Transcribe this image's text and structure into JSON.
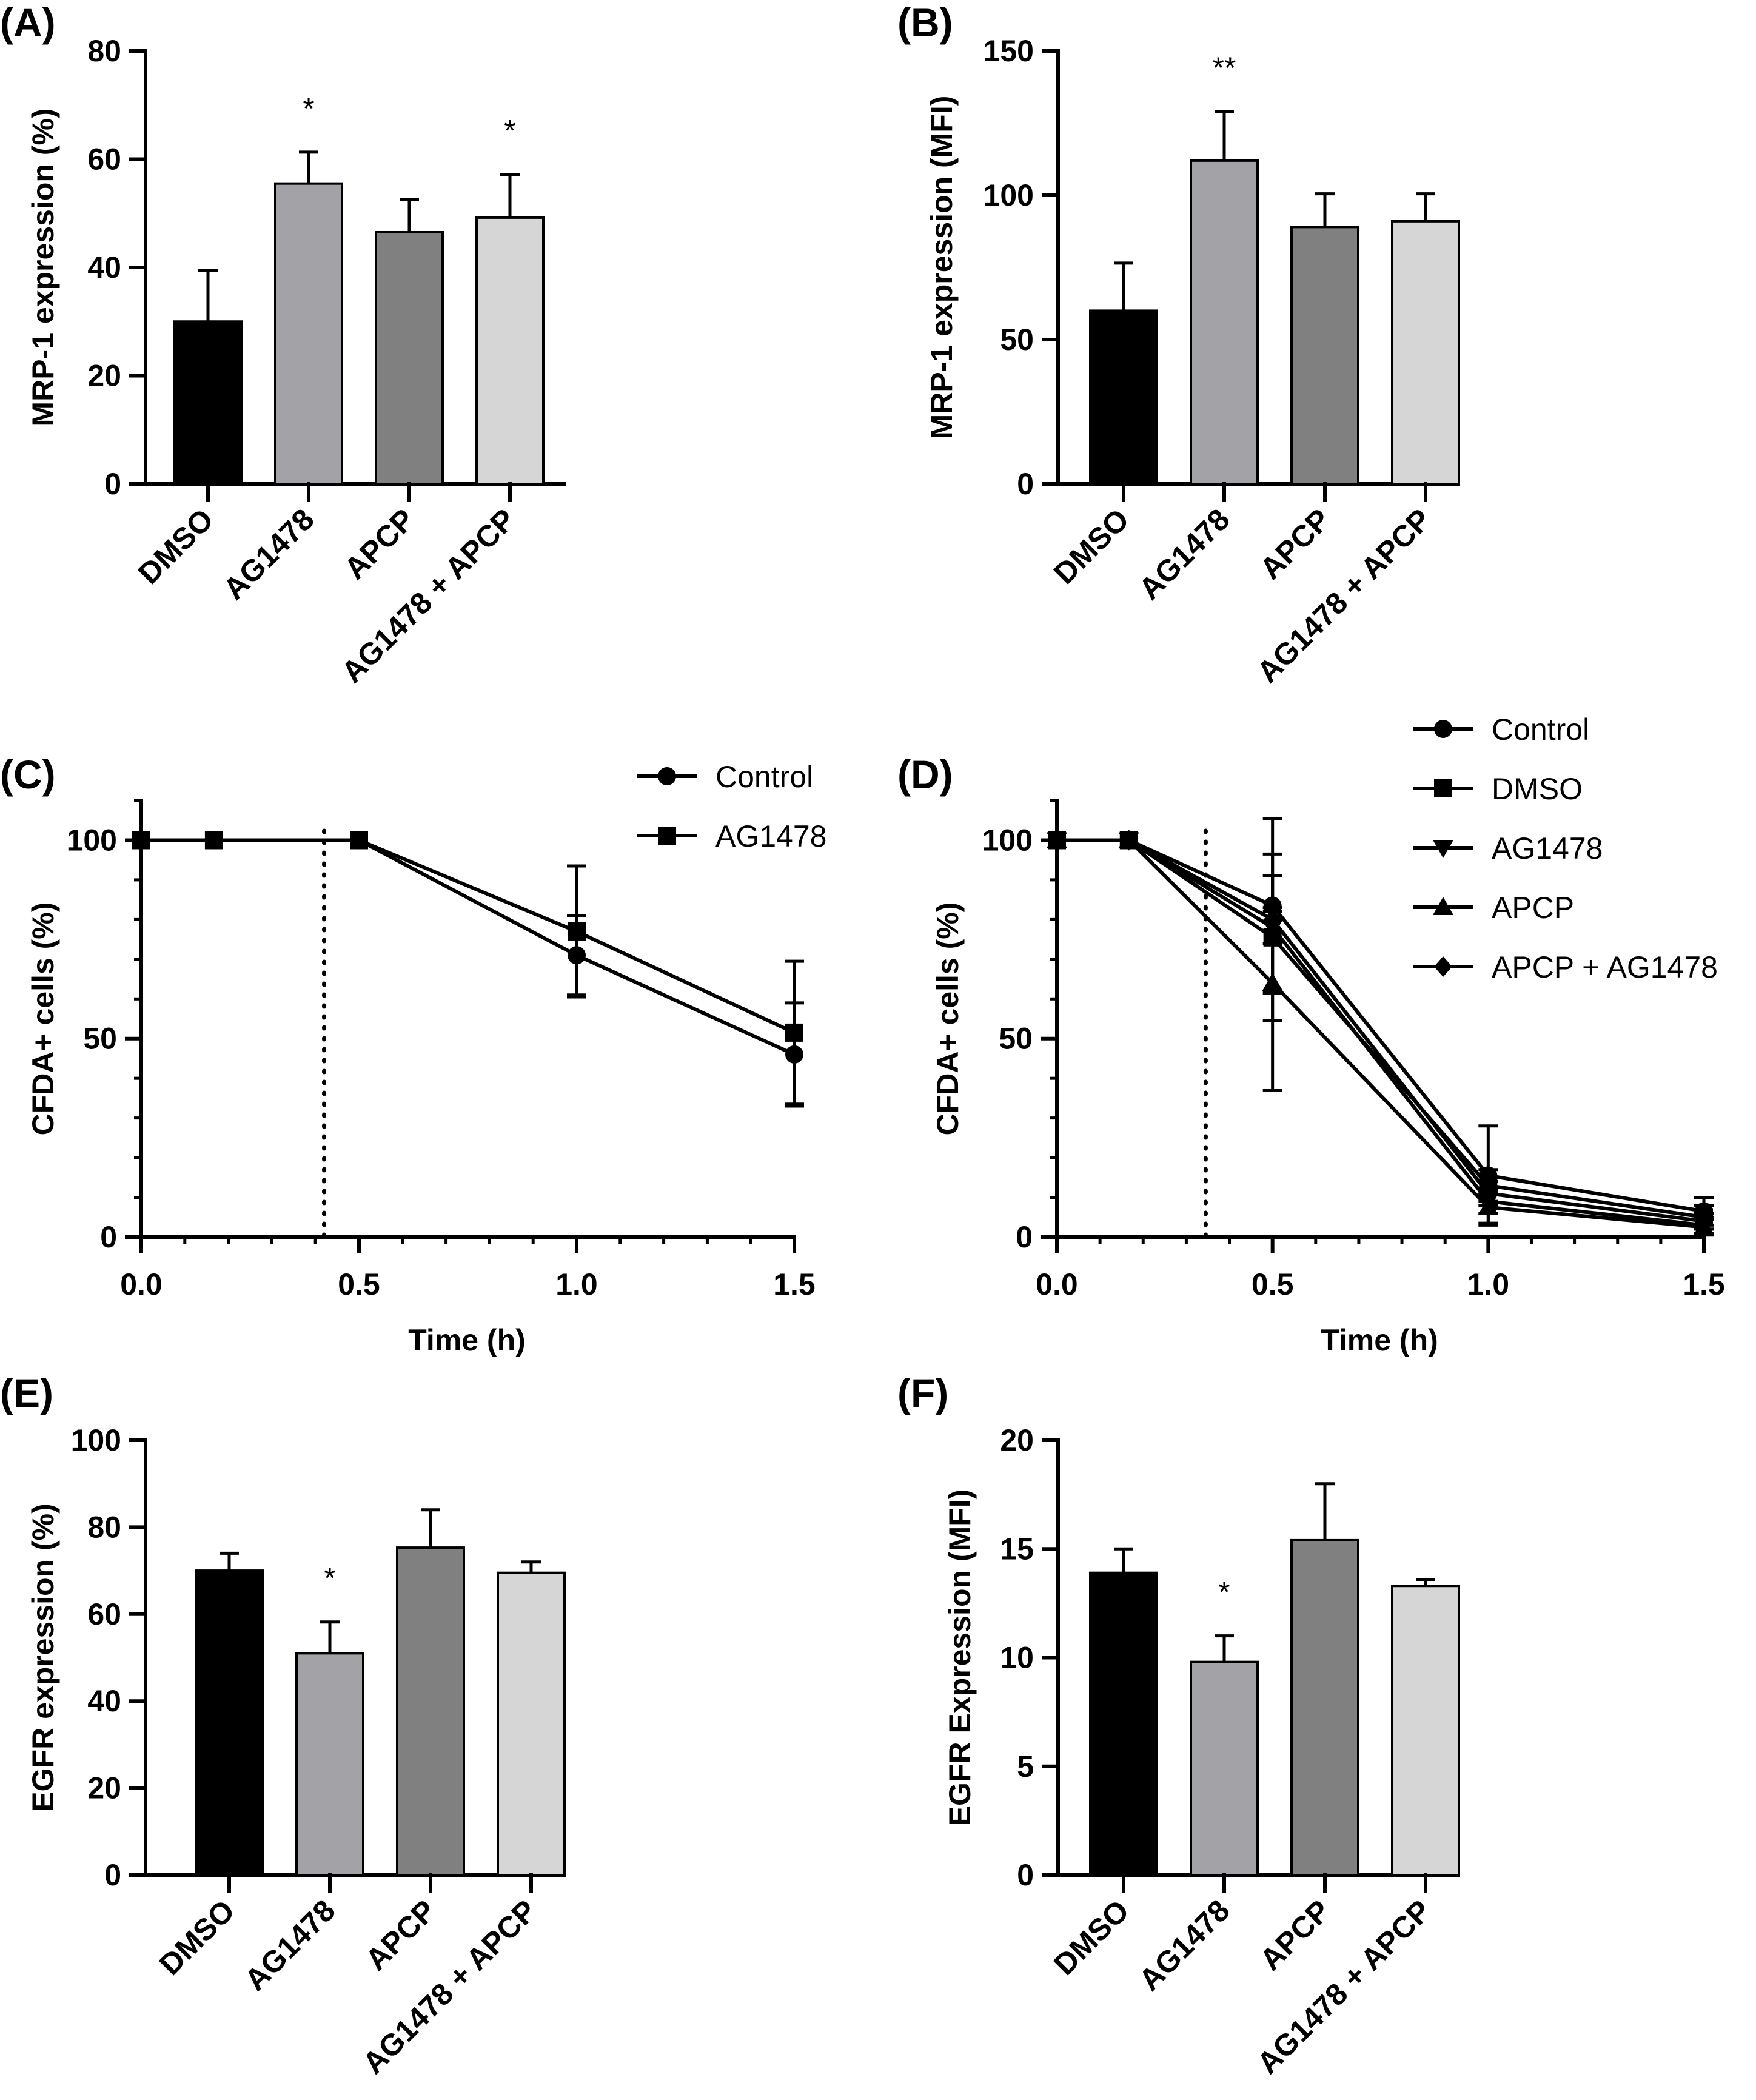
{
  "chart_data": [
    {
      "id": "A",
      "panel_label": "(A)",
      "type": "bar",
      "categories": [
        "DMSO",
        "AG1478",
        "APCP",
        "AG1478 + APCP"
      ],
      "values": [
        30,
        55.5,
        46.5,
        49.2
      ],
      "errors": [
        9.5,
        5.8,
        6.0,
        8.0
      ],
      "colors": [
        "#000000",
        "#a2a2a7",
        "#808080",
        "#d6d6d6"
      ],
      "significance": [
        "",
        "*",
        "",
        "*"
      ],
      "ylabel": "MRP-1 expression (%)",
      "xlabel": "",
      "ylim": [
        0,
        80
      ],
      "yticks": [
        0,
        20,
        40,
        60,
        80
      ],
      "ytick_labels": [
        "0",
        "20",
        "40",
        "60",
        "80"
      ]
    },
    {
      "id": "B",
      "panel_label": "(B)",
      "type": "bar",
      "categories": [
        "DMSO",
        "AG1478",
        "APCP",
        "AG1478 + APCP"
      ],
      "values": [
        60,
        112,
        89,
        91
      ],
      "errors": [
        16.5,
        17,
        11.5,
        9.5
      ],
      "colors": [
        "#000000",
        "#a2a2a7",
        "#808080",
        "#d6d6d6"
      ],
      "significance": [
        "",
        "**",
        "",
        ""
      ],
      "ylabel": "MRP-1 expression (MFI)",
      "xlabel": "",
      "ylim": [
        0,
        150
      ],
      "yticks": [
        0,
        50,
        100,
        150
      ],
      "ytick_labels": [
        "0",
        "50",
        "100",
        "150"
      ]
    },
    {
      "id": "C",
      "panel_label": "(C)",
      "type": "line",
      "xlabel": "Time (h)",
      "ylabel": "CFDA+ cells (%)",
      "xlim": [
        0,
        1.5
      ],
      "ylim": [
        0,
        110
      ],
      "xticks": [
        0,
        0.5,
        1.0,
        1.5
      ],
      "xtick_labels": [
        "0.0",
        "0.5",
        "1.0",
        "1.5"
      ],
      "yticks": [
        0,
        50,
        100
      ],
      "ytick_labels": [
        "0",
        "50",
        "100"
      ],
      "vline_x": 0.42,
      "legend_position": "top-right",
      "series": [
        {
          "name": "Control",
          "marker": "circle",
          "x": [
            0,
            0.167,
            0.5,
            1.0,
            1.5
          ],
          "y": [
            100,
            100,
            100,
            71,
            46
          ],
          "errors": [
            0,
            0,
            0,
            10,
            13
          ]
        },
        {
          "name": "AG1478",
          "marker": "square",
          "x": [
            0,
            0.167,
            0.5,
            1.0,
            1.5
          ],
          "y": [
            100,
            100,
            100,
            77,
            51.5
          ],
          "errors": [
            0,
            0,
            0,
            16.5,
            18
          ]
        }
      ]
    },
    {
      "id": "D",
      "panel_label": "(D)",
      "type": "line",
      "xlabel": "Time (h)",
      "ylabel": "CFDA+ cells (%)",
      "xlim": [
        0,
        1.5
      ],
      "ylim": [
        0,
        110
      ],
      "xticks": [
        0,
        0.5,
        1.0,
        1.5
      ],
      "xtick_labels": [
        "0.0",
        "0.5",
        "1.0",
        "1.5"
      ],
      "yticks": [
        0,
        50,
        100
      ],
      "ytick_labels": [
        "0",
        "50",
        "100"
      ],
      "vline_x": 0.345,
      "legend_position": "top-right",
      "series": [
        {
          "name": "Control",
          "marker": "circle",
          "x": [
            0,
            0.167,
            0.5,
            1.0,
            1.5
          ],
          "y": [
            100,
            100,
            83.5,
            15.5,
            6.5
          ],
          "errors": [
            0,
            0,
            22,
            12.5,
            3.5
          ]
        },
        {
          "name": "DMSO",
          "marker": "square",
          "x": [
            0,
            0.167,
            0.5,
            1.0,
            1.5
          ],
          "y": [
            100,
            100,
            75.5,
            13,
            5
          ],
          "errors": [
            0,
            0,
            21,
            4,
            3
          ]
        },
        {
          "name": "AG1478",
          "marker": "triangle-down",
          "x": [
            0,
            0.167,
            0.5,
            1.0,
            1.5
          ],
          "y": [
            100,
            100,
            78,
            9,
            3
          ],
          "errors": [
            0,
            0,
            4,
            3,
            2
          ]
        },
        {
          "name": "APCP",
          "marker": "triangle-up",
          "x": [
            0,
            0.167,
            0.5,
            1.0,
            1.5
          ],
          "y": [
            100,
            100,
            64,
            7.5,
            2.5
          ],
          "errors": [
            0,
            0,
            27,
            4,
            2
          ]
        },
        {
          "name": "APCP + AG1478",
          "marker": "diamond",
          "x": [
            0,
            0.167,
            0.5,
            1.0,
            1.5
          ],
          "y": [
            100,
            100,
            80,
            11,
            4
          ],
          "errors": [
            0,
            0,
            3,
            3,
            2
          ]
        }
      ]
    },
    {
      "id": "E",
      "panel_label": "(E)",
      "type": "bar",
      "categories": [
        "DMSO",
        "AG1478",
        "APCP",
        "AG1478 + APCP"
      ],
      "values": [
        70,
        51,
        75.3,
        69.5
      ],
      "errors": [
        4,
        7.2,
        8.7,
        2.5
      ],
      "colors": [
        "#000000",
        "#a2a2a7",
        "#808080",
        "#d6d6d6"
      ],
      "significance": [
        "",
        "*",
        "",
        ""
      ],
      "ylabel": "EGFR  expression (%)",
      "xlabel": "",
      "ylim": [
        0,
        100
      ],
      "yticks": [
        0,
        20,
        40,
        60,
        80,
        100
      ],
      "ytick_labels": [
        "0",
        "20",
        "40",
        "60",
        "80",
        "100"
      ]
    },
    {
      "id": "F",
      "panel_label": "(F)",
      "type": "bar",
      "categories": [
        "DMSO",
        "AG1478",
        "APCP",
        "AG1478 + APCP"
      ],
      "values": [
        13.9,
        9.8,
        15.4,
        13.3
      ],
      "errors": [
        1.1,
        1.2,
        2.6,
        0.3
      ],
      "colors": [
        "#000000",
        "#a2a2a7",
        "#808080",
        "#d6d6d6"
      ],
      "significance": [
        "",
        "*",
        "",
        ""
      ],
      "ylabel": "EGFR  Expression (MFI)",
      "xlabel": "",
      "ylim": [
        0,
        20
      ],
      "yticks": [
        0,
        5,
        10,
        15,
        20
      ],
      "ytick_labels": [
        "0",
        "5",
        "10",
        "15",
        "20"
      ]
    }
  ]
}
